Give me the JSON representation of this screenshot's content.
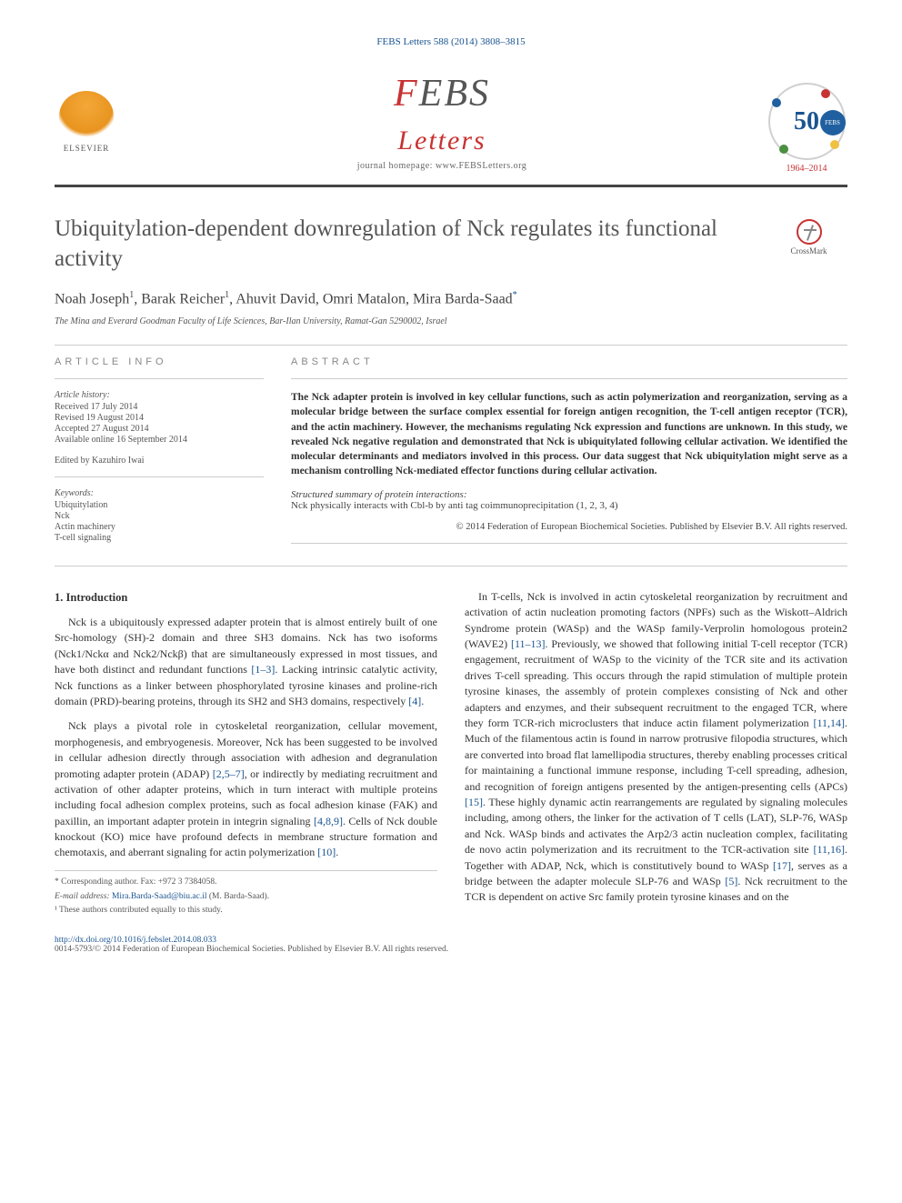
{
  "header": {
    "journal_ref": "FEBS Letters 588 (2014) 3808–3815",
    "elsevier_label": "ELSEVIER",
    "febs_f": "F",
    "febs_e": "E",
    "febs_b": "B",
    "febs_s": "S",
    "letters_word": "Letters",
    "homepage_label": "journal homepage: www.FEBSLetters.org",
    "febs50_num": "50",
    "febs50_badge": "FEBS",
    "febs50_years": "1964–2014"
  },
  "crossmark": {
    "label": "CrossMark"
  },
  "article": {
    "title": "Ubiquitylation-dependent downregulation of Nck regulates its functional activity",
    "authors_html": "Noah Joseph",
    "author1": "Noah Joseph",
    "sup1": "1",
    "author2": "Barak Reicher",
    "sup2": "1",
    "author3": "Ahuvit David",
    "author4": "Omri Matalon",
    "author5": "Mira Barda-Saad",
    "corr": "*",
    "affiliation": "The Mina and Everard Goodman Faculty of Life Sciences, Bar-Ilan University, Ramat-Gan 5290002, Israel"
  },
  "info": {
    "heading": "ARTICLE INFO",
    "history_label": "Article history:",
    "received": "Received 17 July 2014",
    "revised": "Revised 19 August 2014",
    "accepted": "Accepted 27 August 2014",
    "online": "Available online 16 September 2014",
    "edited_by": "Edited by Kazuhiro Iwai",
    "keywords_label": "Keywords:",
    "kw1": "Ubiquitylation",
    "kw2": "Nck",
    "kw3": "Actin machinery",
    "kw4": "T-cell signaling"
  },
  "abstract": {
    "heading": "ABSTRACT",
    "text": "The Nck adapter protein is involved in key cellular functions, such as actin polymerization and reorganization, serving as a molecular bridge between the surface complex essential for foreign antigen recognition, the T-cell antigen receptor (TCR), and the actin machinery. However, the mechanisms regulating Nck expression and functions are unknown. In this study, we revealed Nck negative regulation and demonstrated that Nck is ubiquitylated following cellular activation. We identified the molecular determinants and mediators involved in this process. Our data suggest that Nck ubiquitylation might serve as a mechanism controlling Nck-mediated effector functions during cellular activation.",
    "ss_title": "Structured summary of protein interactions:",
    "ss_text": "Nck physically interacts with Cbl-b by anti tag coimmunoprecipitation (1, 2, 3, 4)",
    "copyright": "© 2014 Federation of European Biochemical Societies. Published by Elsevier B.V. All rights reserved."
  },
  "body": {
    "section1_heading": "1. Introduction",
    "p1a": "Nck is a ubiquitously expressed adapter protein that is almost entirely built of one Src-homology (SH)-2 domain and three SH3 domains. Nck has two isoforms (Nck1/Nckα and Nck2/Nckβ) that are simultaneously expressed in most tissues, and have both distinct and redundant functions ",
    "r1": "[1–3]",
    "p1b": ". Lacking intrinsic catalytic activity, Nck functions as a linker between phosphorylated tyrosine kinases and proline-rich domain (PRD)-bearing proteins, through its SH2 and SH3 domains, respectively ",
    "r2": "[4]",
    "p1c": ".",
    "p2a": "Nck plays a pivotal role in cytoskeletal reorganization, cellular movement, morphogenesis, and embryogenesis. Moreover, Nck has been suggested to be involved in cellular adhesion directly through association with adhesion and degranulation promoting adapter protein (ADAP) ",
    "r3": "[2,5–7]",
    "p2b": ", or indirectly by mediating recruitment and activation of other adapter proteins, which in turn interact with multiple proteins including focal adhesion complex proteins, such as focal adhesion kinase (FAK) and paxillin, an important adapter protein in integrin signaling ",
    "r4": "[4,8,9]",
    "p2c": ". Cells of Nck double knockout (KO) mice have profound defects in membrane structure formation and chemotaxis, and aberrant signaling for actin polymerization ",
    "r5": "[10]",
    "p2d": ".",
    "p3a": "In T-cells, Nck is involved in actin cytoskeletal reorganization by recruitment and activation of actin nucleation promoting factors (NPFs) such as the Wiskott–Aldrich Syndrome protein (WASp) and the WASp family-Verprolin homologous protein2 (WAVE2) ",
    "r6": "[11–13]",
    "p3b": ". Previously, we showed that following initial T-cell receptor (TCR) engagement, recruitment of WASp to the vicinity of the TCR site and its activation drives T-cell spreading. This occurs through the rapid stimulation of multiple protein tyrosine kinases, the assembly of protein complexes consisting of Nck and other adapters and enzymes, and their subsequent recruitment to the engaged TCR, where they form TCR-rich microclusters that induce actin filament polymerization ",
    "r7": "[11,14]",
    "p3c": ". Much of the filamentous actin is found in narrow protrusive filopodia structures, which are converted into broad flat lamellipodia structures, thereby enabling processes critical for maintaining a functional immune response, including T-cell spreading, adhesion, and recognition of foreign antigens presented by the antigen-presenting cells (APCs) ",
    "r8": "[15]",
    "p3d": ". These highly dynamic actin rearrangements are regulated by signaling molecules including, among others, the linker for the activation of T cells (LAT), SLP-76, WASp and Nck. WASp binds and activates the Arp2/3 actin nucleation complex, facilitating de novo actin polymerization and its recruitment to the TCR-activation site ",
    "r9": "[11,16]",
    "p3e": ". Together with ADAP, Nck, which is constitutively bound to WASp ",
    "r10": "[17]",
    "p3f": ", serves as a bridge between the adapter molecule SLP-76 and WASp ",
    "r11": "[5]",
    "p3g": ". Nck recruitment to the TCR is dependent on active Src family protein tyrosine kinases and on the"
  },
  "footnotes": {
    "corr": "* Corresponding author. Fax: +972 3 7384058.",
    "email_label": "E-mail address:",
    "email": "Mira.Barda-Saad@biu.ac.il",
    "email_name": " (M. Barda-Saad).",
    "equal": "¹ These authors contributed equally to this study."
  },
  "footer": {
    "doi": "http://dx.doi.org/10.1016/j.febslet.2014.08.033",
    "issn_cc": "0014-5793/© 2014 Federation of European Biochemical Societies. Published by Elsevier B.V. All rights reserved."
  },
  "colors": {
    "link": "#1a5490",
    "red": "#c83232",
    "text": "#333333",
    "muted": "#555555"
  }
}
